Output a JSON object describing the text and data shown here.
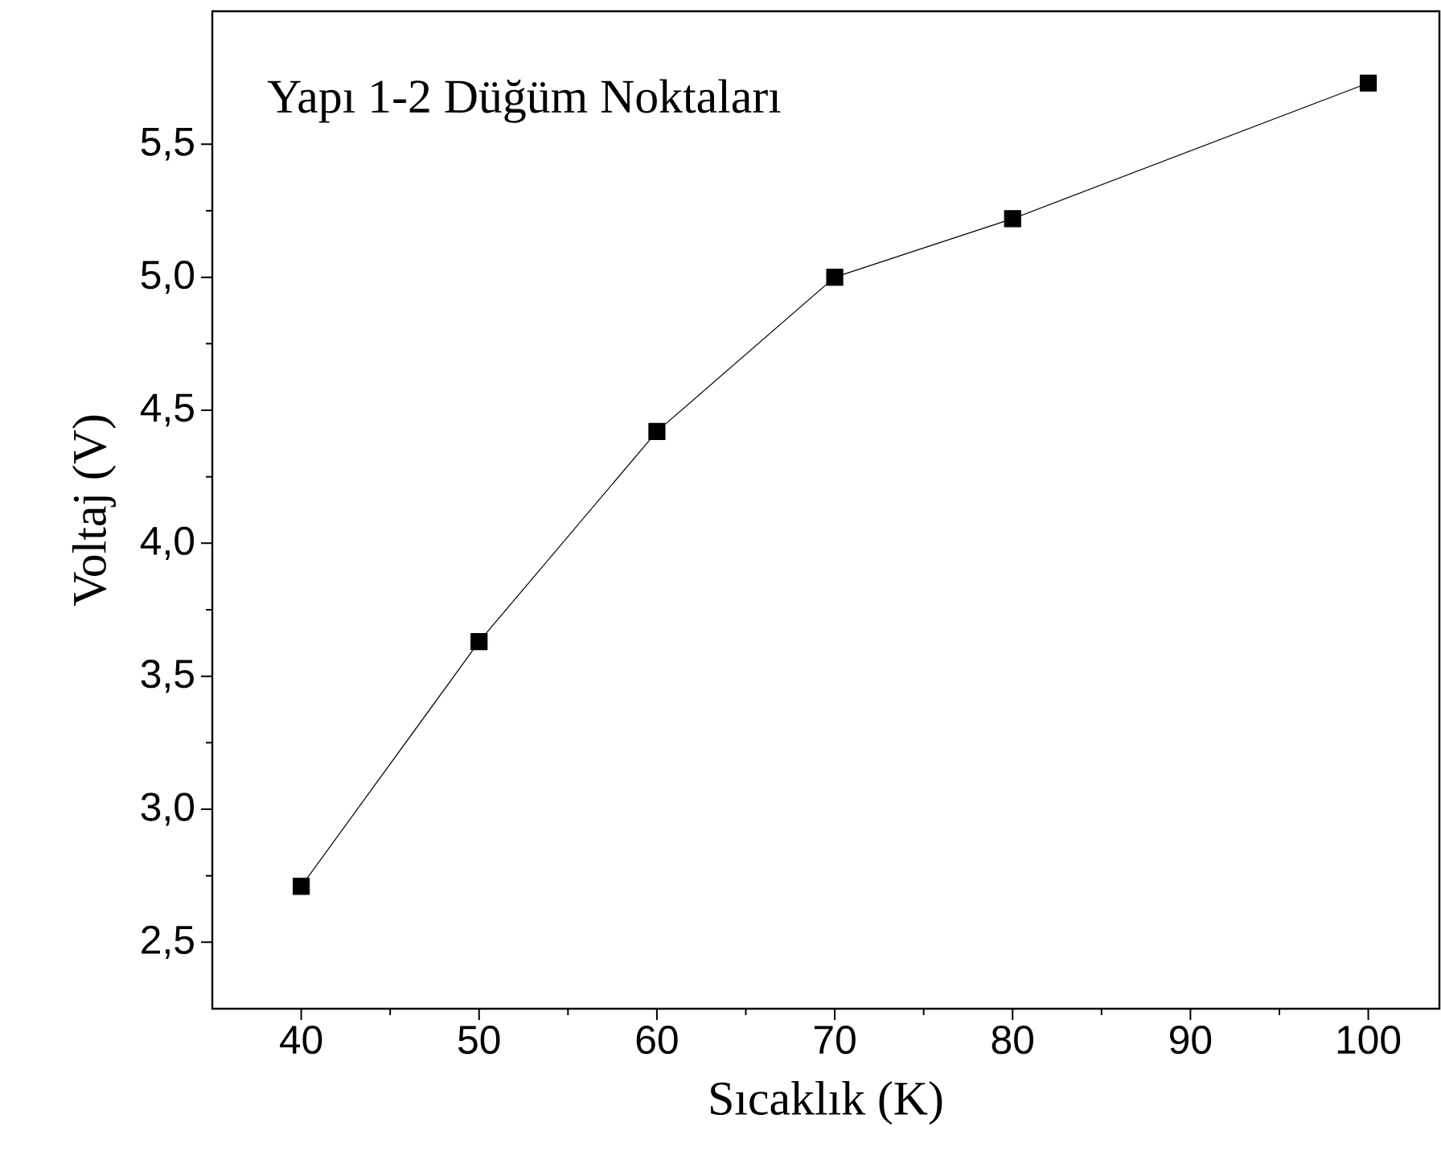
{
  "chart_data": {
    "type": "line",
    "xlabel": "Sıcaklık (K)",
    "ylabel": "Voltaj (V)",
    "annotations": [
      "Yapı 1-2 Düğüm Noktaları"
    ],
    "x": [
      40,
      50,
      60,
      70,
      80,
      100
    ],
    "series": [
      {
        "color": "#000000",
        "values": [
          2.71,
          3.63,
          4.42,
          5.0,
          5.22,
          5.73
        ]
      }
    ],
    "xlim": [
      35,
      104
    ],
    "ylim": [
      2.25,
      6.0
    ],
    "xticks": [
      40,
      50,
      60,
      70,
      80,
      90,
      100
    ],
    "yticks": [
      {
        "value": 2.5,
        "label": "2,5"
      },
      {
        "value": 3.0,
        "label": "3,0"
      },
      {
        "value": 3.5,
        "label": "3,5"
      },
      {
        "value": 4.0,
        "label": "4,0"
      },
      {
        "value": 4.5,
        "label": "4,5"
      },
      {
        "value": 5.0,
        "label": "5,0"
      },
      {
        "value": 5.5,
        "label": "5,5"
      }
    ],
    "grid": false,
    "marker": "square",
    "line_style": "solid"
  }
}
